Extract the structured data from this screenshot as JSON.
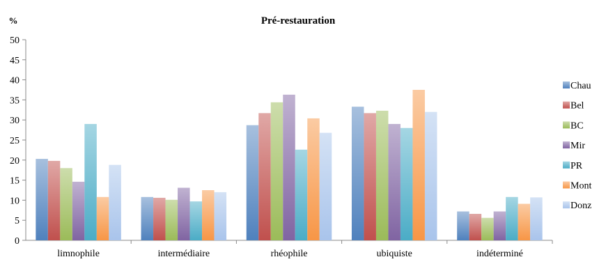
{
  "chart_data": {
    "type": "bar",
    "title": "Pré-restauration",
    "ylabel": "%",
    "xlabel": "",
    "categories": [
      "limnophile",
      "intermédiaire",
      "rhéophile",
      "ubiquiste",
      "indéterminé"
    ],
    "ylim": [
      0,
      50
    ],
    "yticks": [
      0,
      5,
      10,
      15,
      20,
      25,
      30,
      35,
      40,
      45,
      50
    ],
    "grid": false,
    "legend_position": "right",
    "series": [
      {
        "name": "Chau",
        "color": "#4f81bd",
        "values": [
          20.3,
          10.8,
          28.7,
          33.3,
          7.2
        ]
      },
      {
        "name": "Bel",
        "color": "#c0504d",
        "values": [
          19.8,
          10.6,
          31.7,
          31.7,
          6.6
        ]
      },
      {
        "name": "BC",
        "color": "#9bbb59",
        "values": [
          18.0,
          10.1,
          34.4,
          32.3,
          5.6
        ]
      },
      {
        "name": "Mir",
        "color": "#8064a2",
        "values": [
          14.6,
          13.1,
          36.3,
          29.0,
          7.2
        ]
      },
      {
        "name": "PR",
        "color": "#4bacc6",
        "values": [
          29.0,
          9.7,
          22.6,
          28.0,
          10.8
        ]
      },
      {
        "name": "Mont",
        "color": "#f79646",
        "values": [
          10.8,
          12.5,
          30.4,
          37.5,
          9.1
        ]
      },
      {
        "name": "Donz",
        "color": "#a9c4eb",
        "values": [
          18.8,
          12.0,
          26.8,
          32.0,
          10.7
        ]
      }
    ]
  }
}
